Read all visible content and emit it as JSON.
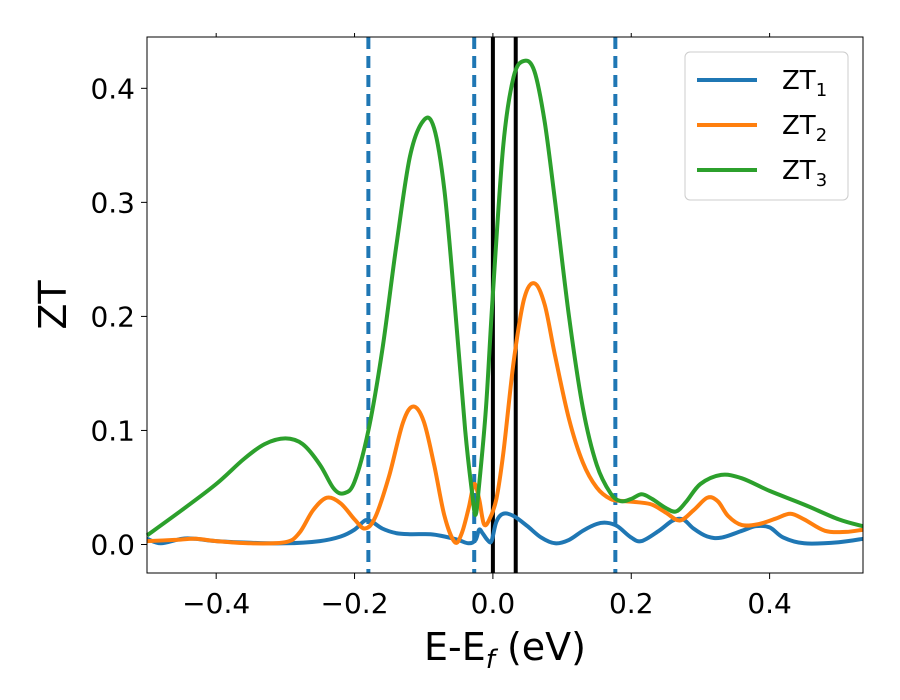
{
  "chart_data": {
    "type": "line",
    "xlabel": "E-E",
    "xlabel_sub": "f",
    "xlabel_unit": " (eV)",
    "ylabel": "ZT",
    "xlim": [
      -0.5,
      0.535
    ],
    "ylim": [
      -0.025,
      0.445
    ],
    "xticks": [
      {
        "value": -0.4,
        "label": "−0.4"
      },
      {
        "value": -0.2,
        "label": "−0.2"
      },
      {
        "value": 0.0,
        "label": "0.0"
      },
      {
        "value": 0.2,
        "label": "0.2"
      },
      {
        "value": 0.4,
        "label": "0.4"
      }
    ],
    "yticks": [
      {
        "value": 0.0,
        "label": "0.0"
      },
      {
        "value": 0.1,
        "label": "0.1"
      },
      {
        "value": 0.2,
        "label": "0.2"
      },
      {
        "value": 0.3,
        "label": "0.3"
      },
      {
        "value": 0.4,
        "label": "0.4"
      }
    ],
    "grid": false,
    "legend_position": "top-right",
    "vlines_dashed": [
      -0.18,
      -0.027,
      0.177
    ],
    "vlines_solid": [
      0.0,
      0.033
    ],
    "series": [
      {
        "name": "ZT",
        "sub": "1",
        "color": "#1f77b4",
        "points": [
          [
            -0.5,
            0.005
          ],
          [
            -0.48,
            0.001
          ],
          [
            -0.45,
            0.005
          ],
          [
            -0.43,
            0.005
          ],
          [
            -0.4,
            0.003
          ],
          [
            -0.35,
            0.0015
          ],
          [
            -0.3,
            0.001
          ],
          [
            -0.25,
            0.003
          ],
          [
            -0.22,
            0.007
          ],
          [
            -0.2,
            0.013
          ],
          [
            -0.185,
            0.021
          ],
          [
            -0.175,
            0.02
          ],
          [
            -0.16,
            0.014
          ],
          [
            -0.14,
            0.01
          ],
          [
            -0.12,
            0.009
          ],
          [
            -0.09,
            0.009
          ],
          [
            -0.07,
            0.007
          ],
          [
            -0.05,
            0.004
          ],
          [
            -0.035,
            0.001
          ],
          [
            -0.025,
            0.004
          ],
          [
            -0.02,
            0.013
          ],
          [
            -0.015,
            0.01
          ],
          [
            -0.008,
            0.004
          ],
          [
            -0.002,
            0.003
          ],
          [
            0.005,
            0.02
          ],
          [
            0.015,
            0.027
          ],
          [
            0.03,
            0.025
          ],
          [
            0.05,
            0.016
          ],
          [
            0.07,
            0.006
          ],
          [
            0.09,
            0.001
          ],
          [
            0.11,
            0.004
          ],
          [
            0.13,
            0.012
          ],
          [
            0.15,
            0.018
          ],
          [
            0.165,
            0.019
          ],
          [
            0.18,
            0.016
          ],
          [
            0.2,
            0.006
          ],
          [
            0.215,
            0.003
          ],
          [
            0.24,
            0.012
          ],
          [
            0.26,
            0.021
          ],
          [
            0.275,
            0.022
          ],
          [
            0.29,
            0.014
          ],
          [
            0.31,
            0.007
          ],
          [
            0.33,
            0.006
          ],
          [
            0.36,
            0.012
          ],
          [
            0.38,
            0.016
          ],
          [
            0.4,
            0.015
          ],
          [
            0.42,
            0.006
          ],
          [
            0.45,
            0.001
          ],
          [
            0.5,
            0.002
          ],
          [
            0.535,
            0.005
          ]
        ]
      },
      {
        "name": "ZT",
        "sub": "2",
        "color": "#ff7f0e",
        "points": [
          [
            -0.5,
            0.003
          ],
          [
            -0.46,
            0.004
          ],
          [
            -0.43,
            0.005
          ],
          [
            -0.4,
            0.003
          ],
          [
            -0.35,
            0.001
          ],
          [
            -0.3,
            0.002
          ],
          [
            -0.28,
            0.01
          ],
          [
            -0.26,
            0.03
          ],
          [
            -0.24,
            0.041
          ],
          [
            -0.22,
            0.036
          ],
          [
            -0.2,
            0.022
          ],
          [
            -0.185,
            0.014
          ],
          [
            -0.17,
            0.024
          ],
          [
            -0.15,
            0.06
          ],
          [
            -0.13,
            0.107
          ],
          [
            -0.115,
            0.121
          ],
          [
            -0.1,
            0.108
          ],
          [
            -0.085,
            0.07
          ],
          [
            -0.07,
            0.025
          ],
          [
            -0.055,
            0.002
          ],
          [
            -0.045,
            0.01
          ],
          [
            -0.035,
            0.032
          ],
          [
            -0.027,
            0.053
          ],
          [
            -0.02,
            0.04
          ],
          [
            -0.013,
            0.018
          ],
          [
            -0.005,
            0.022
          ],
          [
            0.005,
            0.04
          ],
          [
            0.015,
            0.08
          ],
          [
            0.03,
            0.16
          ],
          [
            0.045,
            0.215
          ],
          [
            0.06,
            0.229
          ],
          [
            0.075,
            0.21
          ],
          [
            0.09,
            0.165
          ],
          [
            0.11,
            0.11
          ],
          [
            0.13,
            0.072
          ],
          [
            0.15,
            0.05
          ],
          [
            0.17,
            0.04
          ],
          [
            0.19,
            0.038
          ],
          [
            0.21,
            0.037
          ],
          [
            0.23,
            0.035
          ],
          [
            0.25,
            0.028
          ],
          [
            0.27,
            0.021
          ],
          [
            0.29,
            0.03
          ],
          [
            0.31,
            0.041
          ],
          [
            0.325,
            0.038
          ],
          [
            0.34,
            0.025
          ],
          [
            0.36,
            0.017
          ],
          [
            0.385,
            0.018
          ],
          [
            0.41,
            0.023
          ],
          [
            0.43,
            0.027
          ],
          [
            0.45,
            0.022
          ],
          [
            0.48,
            0.012
          ],
          [
            0.51,
            0.011
          ],
          [
            0.535,
            0.013
          ]
        ]
      },
      {
        "name": "ZT",
        "sub": "3",
        "color": "#2ca02c",
        "points": [
          [
            -0.5,
            0.008
          ],
          [
            -0.45,
            0.03
          ],
          [
            -0.4,
            0.053
          ],
          [
            -0.36,
            0.075
          ],
          [
            -0.33,
            0.088
          ],
          [
            -0.3,
            0.093
          ],
          [
            -0.275,
            0.088
          ],
          [
            -0.25,
            0.07
          ],
          [
            -0.23,
            0.049
          ],
          [
            -0.215,
            0.045
          ],
          [
            -0.2,
            0.055
          ],
          [
            -0.18,
            0.1
          ],
          [
            -0.16,
            0.17
          ],
          [
            -0.14,
            0.26
          ],
          [
            -0.12,
            0.34
          ],
          [
            -0.1,
            0.372
          ],
          [
            -0.085,
            0.365
          ],
          [
            -0.07,
            0.31
          ],
          [
            -0.055,
            0.21
          ],
          [
            -0.04,
            0.1
          ],
          [
            -0.03,
            0.045
          ],
          [
            -0.025,
            0.026
          ],
          [
            -0.02,
            0.052
          ],
          [
            -0.01,
            0.12
          ],
          [
            0.0,
            0.22
          ],
          [
            0.015,
            0.35
          ],
          [
            0.03,
            0.41
          ],
          [
            0.045,
            0.424
          ],
          [
            0.06,
            0.415
          ],
          [
            0.075,
            0.37
          ],
          [
            0.09,
            0.3
          ],
          [
            0.11,
            0.2
          ],
          [
            0.13,
            0.12
          ],
          [
            0.15,
            0.07
          ],
          [
            0.17,
            0.045
          ],
          [
            0.185,
            0.038
          ],
          [
            0.2,
            0.04
          ],
          [
            0.215,
            0.044
          ],
          [
            0.23,
            0.04
          ],
          [
            0.25,
            0.032
          ],
          [
            0.265,
            0.029
          ],
          [
            0.28,
            0.038
          ],
          [
            0.3,
            0.053
          ],
          [
            0.33,
            0.061
          ],
          [
            0.36,
            0.058
          ],
          [
            0.4,
            0.047
          ],
          [
            0.45,
            0.035
          ],
          [
            0.5,
            0.022
          ],
          [
            0.535,
            0.016
          ]
        ]
      }
    ]
  }
}
